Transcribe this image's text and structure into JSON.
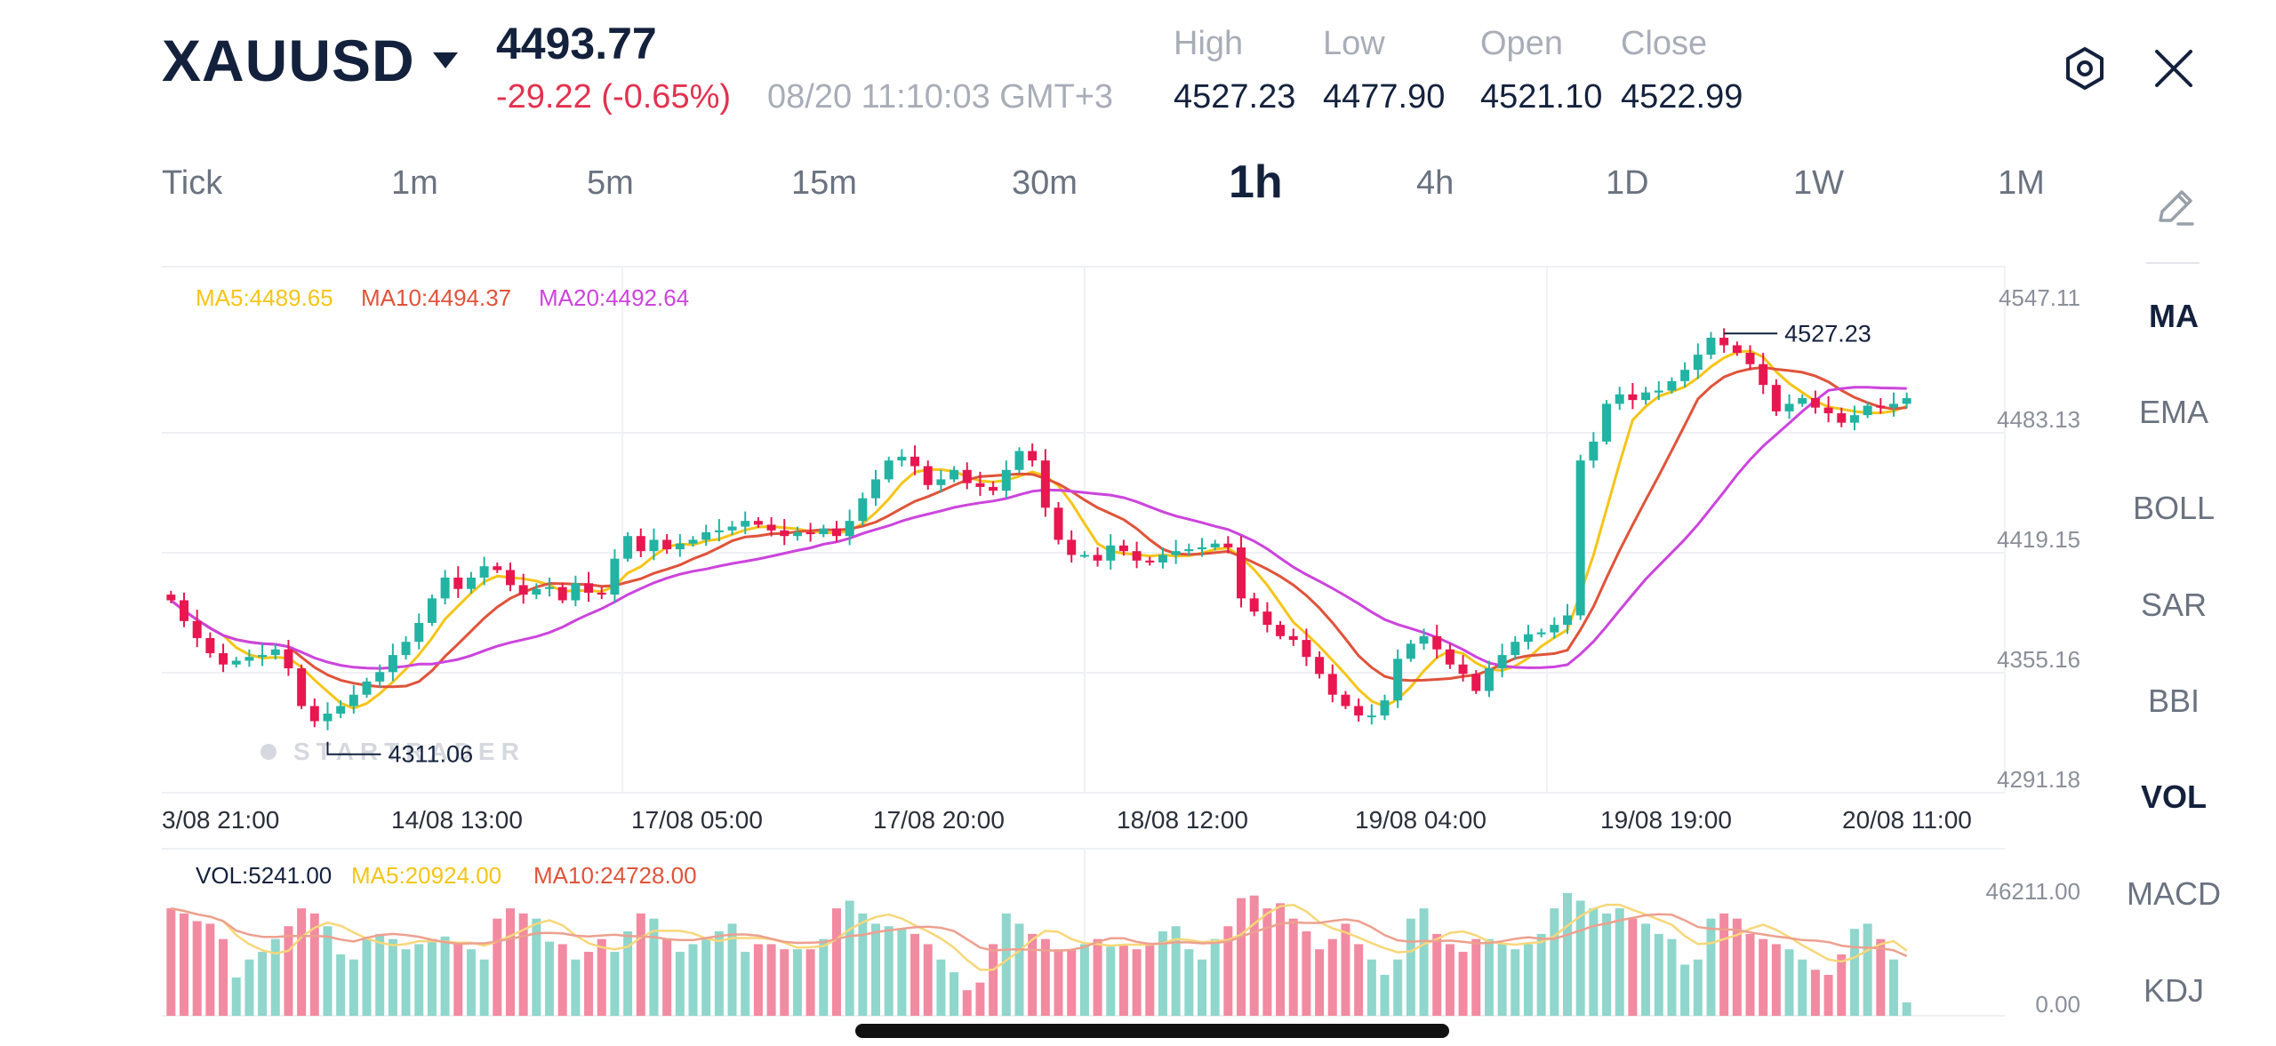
{
  "header": {
    "symbol": "XAUUSD",
    "price": "4493.77",
    "change": "-29.22 (-0.65%)",
    "timestamp": "08/20 11:10:03 GMT+3",
    "stats": [
      {
        "label": "High",
        "value": "4527.23"
      },
      {
        "label": "Low",
        "value": "4477.90"
      },
      {
        "label": "Open",
        "value": "4521.10"
      },
      {
        "label": "Close",
        "value": "4522.99"
      }
    ]
  },
  "timeframes": [
    "Tick",
    "1m",
    "5m",
    "15m",
    "30m",
    "1h",
    "4h",
    "1D",
    "1W",
    "1M"
  ],
  "active_timeframe": "1h",
  "indicators": [
    {
      "label": "MA",
      "active": true
    },
    {
      "label": "EMA",
      "active": false
    },
    {
      "label": "BOLL",
      "active": false
    },
    {
      "label": "SAR",
      "active": false
    },
    {
      "label": "BBI",
      "active": false
    },
    {
      "label": "VOL",
      "active": true
    },
    {
      "label": "MACD",
      "active": false
    },
    {
      "label": "KDJ",
      "active": false
    }
  ],
  "main_legend": {
    "ma5": "MA5:4489.65",
    "ma10": "MA10:4494.37",
    "ma20": "MA20:4492.64"
  },
  "vol_legend": {
    "vol": "VOL:5241.00",
    "ma5": "MA5:20924.00",
    "ma10": "MA10:24728.00"
  },
  "y_axis_labels": [
    "4547.11",
    "4483.13",
    "4419.15",
    "4355.16",
    "4291.18"
  ],
  "vol_axis_labels": [
    "46211.00",
    "0.00"
  ],
  "x_axis_labels": [
    "3/08 21:00",
    "14/08 13:00",
    "17/08 05:00",
    "17/08 20:00",
    "18/08 12:00",
    "19/08 04:00",
    "19/08 19:00",
    "20/08 11:00"
  ],
  "watermark": "STARTRADER",
  "colors": {
    "up": "#22b3a3",
    "down": "#e8174f",
    "ma5": "#f5c518",
    "ma10": "#e0533a",
    "ma20": "#cc44dd",
    "dark": "#14213d",
    "red_text": "#e2324f"
  },
  "chart_data": {
    "type": "candlestick",
    "symbol": "XAUUSD",
    "interval": "1h",
    "ylim": [
      4291.18,
      4547.11
    ],
    "y_ticks": [
      4547.11,
      4483.13,
      4419.15,
      4355.16,
      4291.18
    ],
    "x_ticks": [
      "3/08 21:00",
      "14/08 13:00",
      "17/08 05:00",
      "17/08 20:00",
      "18/08 12:00",
      "19/08 04:00",
      "19/08 19:00",
      "20/08 11:00"
    ],
    "annotations": [
      {
        "label": "4527.23",
        "value": 4527.23,
        "type": "high"
      },
      {
        "label": "4311.06",
        "value": 4311.06,
        "type": "low"
      }
    ],
    "close": [
      4386,
      4375,
      4366,
      4358,
      4352,
      4354,
      4356,
      4357,
      4360,
      4350,
      4330,
      4322,
      4326,
      4330,
      4336,
      4343,
      4348,
      4357,
      4364,
      4374,
      4387,
      4398,
      4392,
      4398,
      4404,
      4402,
      4394,
      4389,
      4392,
      4393,
      4386,
      4395,
      4390,
      4389,
      4408,
      4420,
      4412,
      4418,
      4413,
      4416,
      4418,
      4422,
      4423,
      4425,
      4428,
      4426,
      4423,
      4420,
      4422,
      4421,
      4424,
      4420,
      4428,
      4440,
      4450,
      4460,
      4462,
      4457,
      4447,
      4450,
      4455,
      4448,
      4446,
      4444,
      4455,
      4465,
      4460,
      4435,
      4418,
      4410,
      4410,
      4407,
      4415,
      4412,
      4407,
      4406,
      4410,
      4412,
      4413,
      4414,
      4416,
      4414,
      4387,
      4380,
      4373,
      4367,
      4365,
      4356,
      4347,
      4336,
      4330,
      4325,
      4325,
      4333,
      4355,
      4363,
      4367,
      4360,
      4352,
      4347,
      4338,
      4350,
      4357,
      4364,
      4368,
      4369,
      4373,
      4378,
      4460,
      4470,
      4490,
      4495,
      4492,
      4496,
      4497,
      4502,
      4508,
      4516,
      4525,
      4521,
      4517,
      4511,
      4500,
      4486,
      4490,
      4493,
      4488,
      4485,
      4480,
      4484,
      4489,
      4488,
      4490,
      4493
    ],
    "volume": [
      42000,
      40000,
      37000,
      36000,
      30000,
      15000,
      22000,
      25000,
      30000,
      35000,
      42000,
      40000,
      35000,
      24000,
      22000,
      30000,
      32000,
      30000,
      26000,
      28000,
      30000,
      31000,
      28000,
      26000,
      22000,
      38000,
      42000,
      40000,
      38000,
      29000,
      28000,
      22000,
      25000,
      30000,
      25000,
      33000,
      40000,
      38000,
      30000,
      25000,
      28000,
      30000,
      33000,
      36000,
      25000,
      28000,
      28000,
      26000,
      26000,
      26000,
      30000,
      42000,
      45000,
      40000,
      36000,
      35000,
      34000,
      32000,
      28000,
      22000,
      17000,
      10000,
      13000,
      28000,
      40000,
      36000,
      32000,
      30000,
      26000,
      26000,
      28000,
      30000,
      27000,
      28000,
      26000,
      28000,
      33000,
      35000,
      26000,
      22000,
      30000,
      35000,
      46000,
      47000,
      42000,
      44000,
      38000,
      33000,
      26000,
      30000,
      36000,
      28000,
      22000,
      16000,
      22000,
      38000,
      42000,
      32000,
      28000,
      25000,
      30000,
      30000,
      28000,
      26000,
      28000,
      32000,
      42000,
      48000,
      45000,
      42000,
      40000,
      42000,
      38000,
      36000,
      32000,
      30000,
      20000,
      22000,
      38000,
      40000,
      38000,
      32000,
      30000,
      28000,
      26000,
      22000,
      18000,
      16000,
      24000,
      34000,
      36000,
      30000,
      22000,
      5241
    ],
    "series": [
      {
        "name": "MA5",
        "latest": 4489.65
      },
      {
        "name": "MA10",
        "latest": 4494.37
      },
      {
        "name": "MA20",
        "latest": 4492.64
      }
    ],
    "volume_series": [
      {
        "name": "VOL",
        "latest": 5241.0
      },
      {
        "name": "MA5",
        "latest": 20924.0
      },
      {
        "name": "MA10",
        "latest": 24728.0
      }
    ],
    "vol_ylim": [
      0,
      46211.0
    ]
  }
}
